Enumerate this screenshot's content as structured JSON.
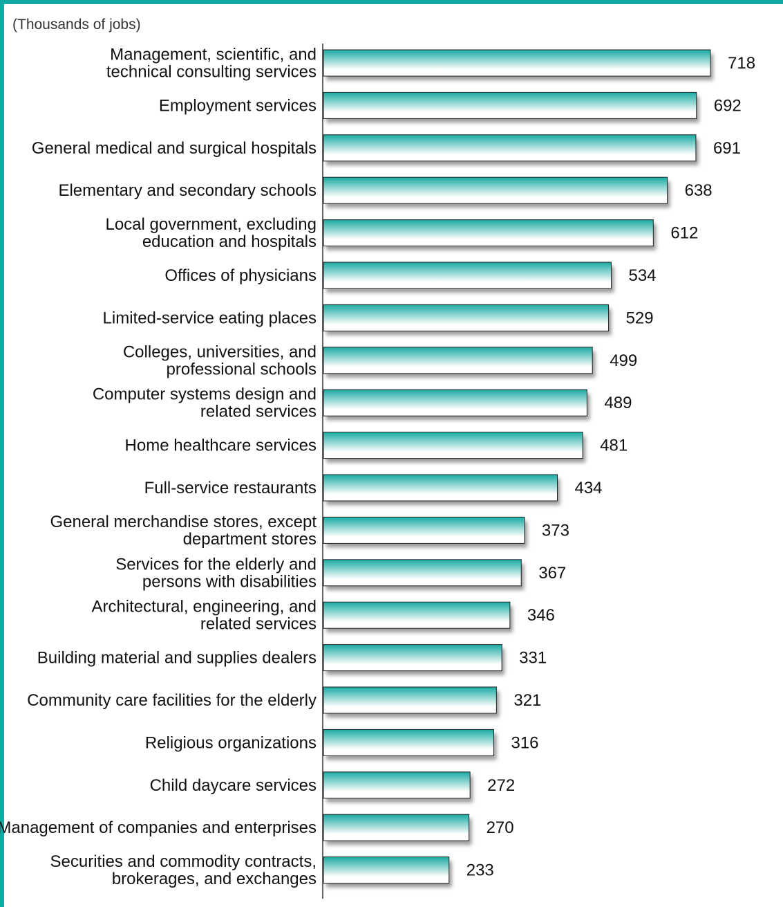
{
  "chart_data": {
    "type": "bar",
    "orientation": "horizontal",
    "unit_label": "(Thousands of jobs)",
    "categories": [
      [
        "Management, scientific, and",
        "technical consulting services"
      ],
      [
        "Employment services"
      ],
      [
        "General medical and surgical hospitals"
      ],
      [
        "Elementary and secondary schools"
      ],
      [
        "Local government, excluding",
        "education and hospitals"
      ],
      [
        "Offices of physicians"
      ],
      [
        "Limited-service eating places"
      ],
      [
        "Colleges, universities, and",
        "professional schools"
      ],
      [
        "Computer systems design and",
        "related services"
      ],
      [
        "Home healthcare services"
      ],
      [
        "Full-service restaurants"
      ],
      [
        "General merchandise stores, except",
        "department stores"
      ],
      [
        "Services for the elderly and",
        "persons with disabilities"
      ],
      [
        "Architectural, engineering, and",
        "related services"
      ],
      [
        "Building material and supplies dealers"
      ],
      [
        "Community care facilities for the elderly"
      ],
      [
        "Religious organizations"
      ],
      [
        "Child daycare services"
      ],
      [
        "Management of companies and enterprises"
      ],
      [
        "Securities and commodity contracts,",
        "brokerages, and exchanges"
      ]
    ],
    "values": [
      718,
      692,
      691,
      638,
      612,
      534,
      529,
      499,
      489,
      481,
      434,
      373,
      367,
      346,
      331,
      321,
      316,
      272,
      270,
      233
    ],
    "value_labels": [
      "718",
      "692",
      "691",
      "638",
      "612",
      "534",
      "529",
      "499",
      "489",
      "481",
      "434",
      "373",
      "367",
      "346",
      "331",
      "321",
      "316",
      "272",
      "270",
      "233"
    ],
    "xlim": [
      0,
      718
    ],
    "grid": false,
    "legend": "none"
  },
  "colors": {
    "frame": "#14aaa3",
    "bar_top": "#19aaa2",
    "bar_bottom": "#ffffff",
    "bar_outline": "#222222",
    "shadow": "#7a7a7a"
  }
}
